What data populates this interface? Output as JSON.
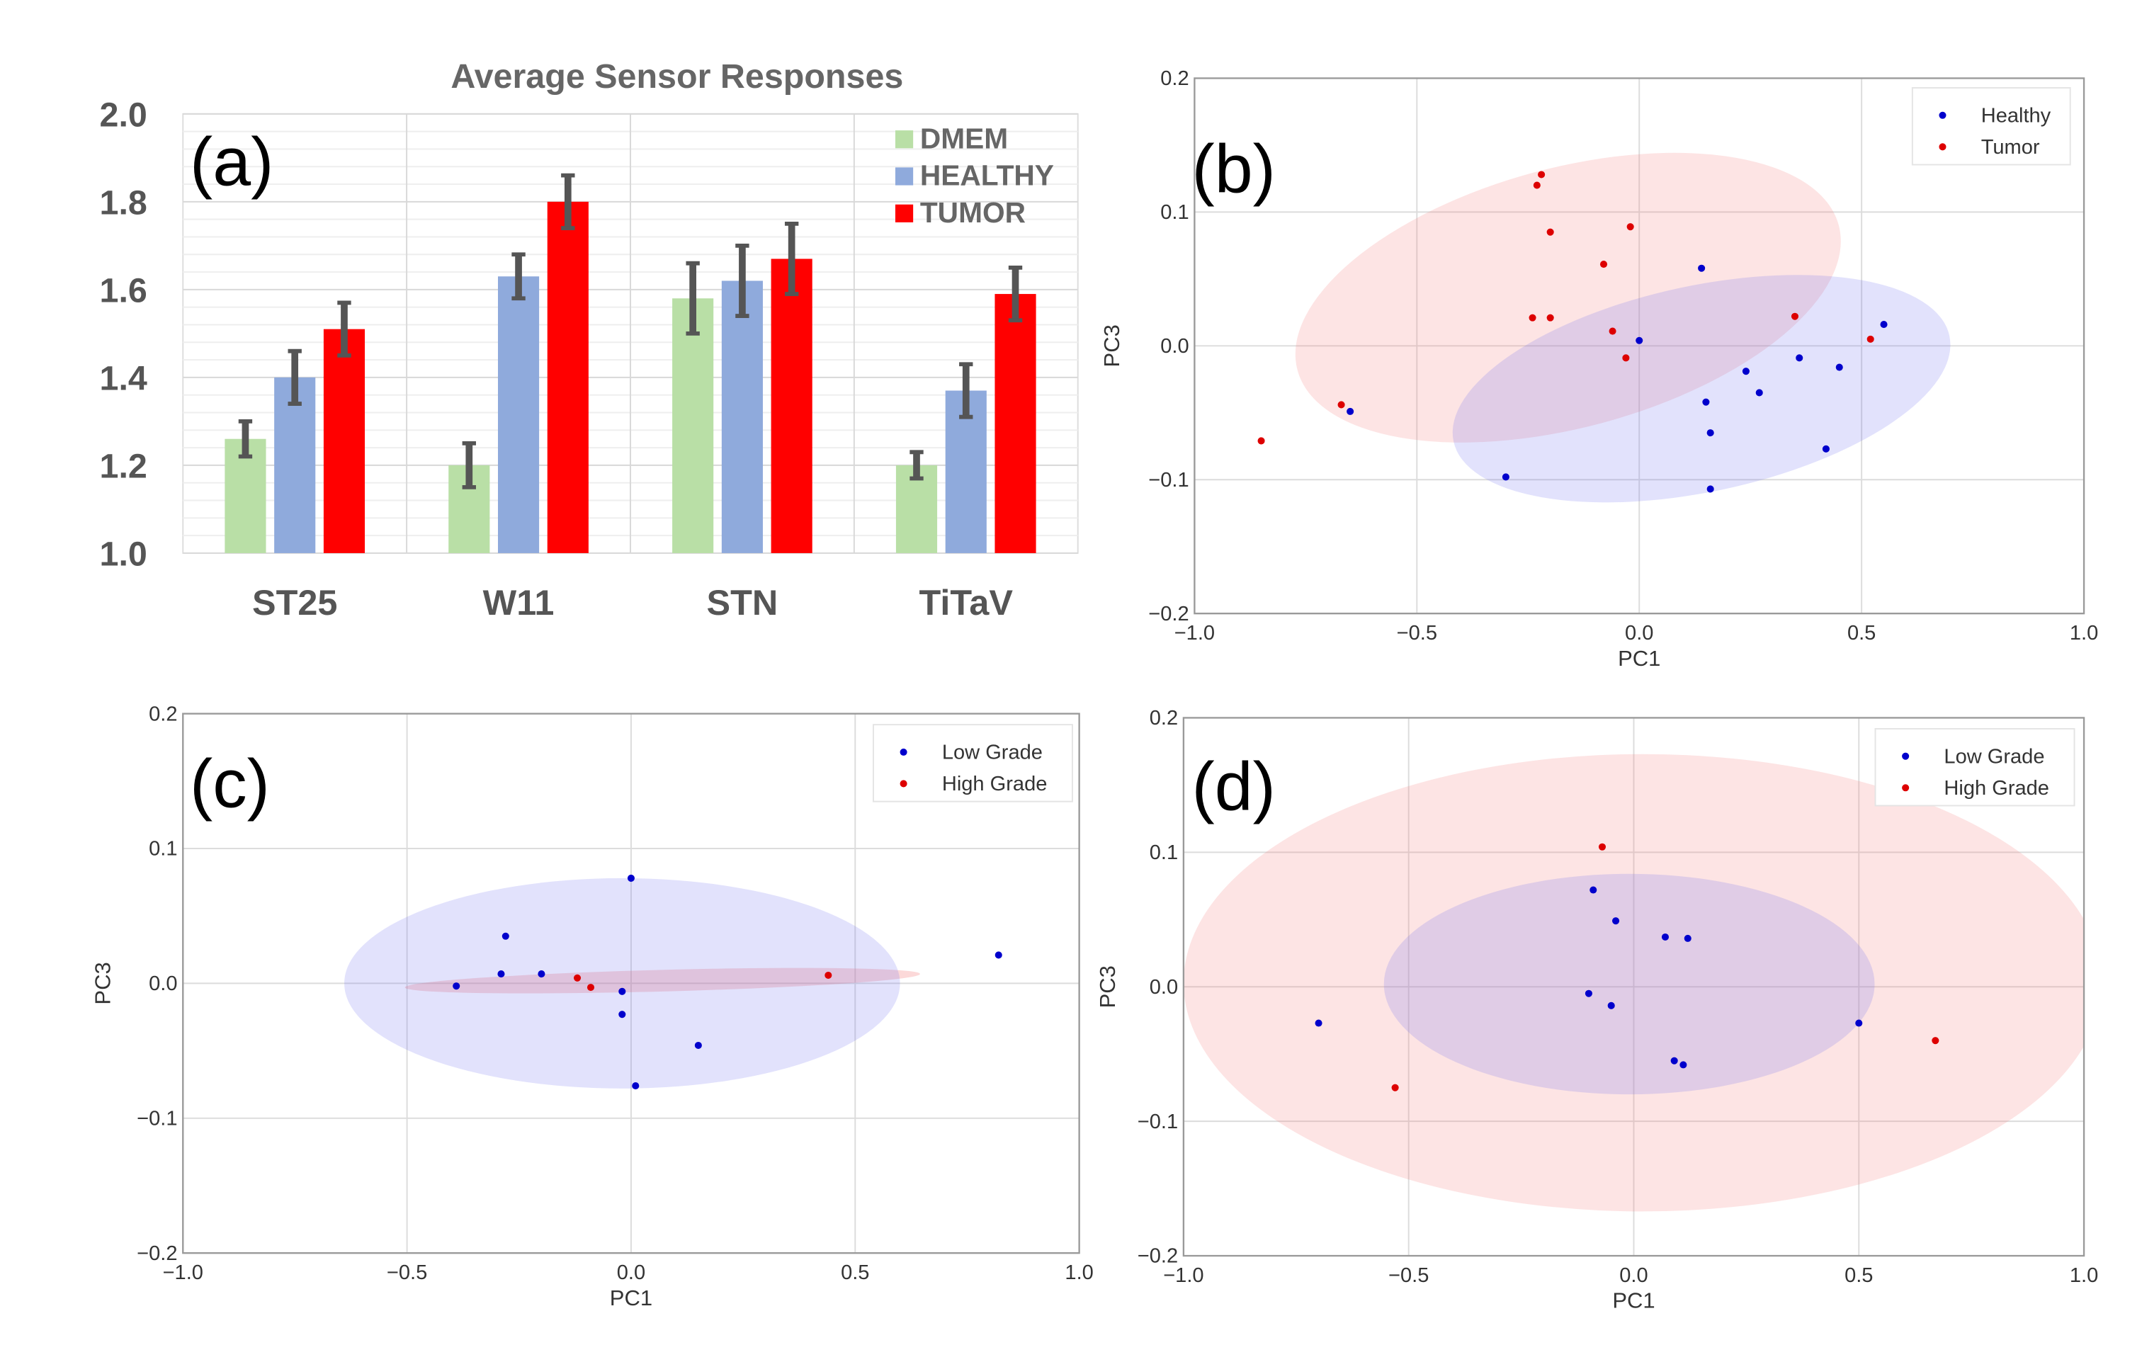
{
  "chart_data": [
    {
      "panel": "(a)",
      "type": "bar",
      "title": "Average Sensor Responses",
      "categories": [
        "ST25",
        "W11",
        "STN",
        "TiTaV"
      ],
      "series": [
        {
          "name": "DMEM",
          "color": "#b9dfa6",
          "values": [
            1.26,
            1.2,
            1.58,
            1.2
          ],
          "errors": [
            0.04,
            0.05,
            0.08,
            0.03
          ]
        },
        {
          "name": "HEALTHY",
          "color": "#8faadc",
          "values": [
            1.4,
            1.63,
            1.62,
            1.37
          ],
          "errors": [
            0.06,
            0.05,
            0.08,
            0.06
          ]
        },
        {
          "name": "TUMOR",
          "color": "#ff0000",
          "values": [
            1.51,
            1.8,
            1.67,
            1.59
          ],
          "errors": [
            0.06,
            0.06,
            0.08,
            0.06
          ]
        }
      ],
      "ylim": [
        1.0,
        2.0
      ],
      "yticks": [
        "1.0",
        "1.2",
        "1.4",
        "1.6",
        "1.8",
        "2.0"
      ],
      "legend": "top-right"
    },
    {
      "panel": "(b)",
      "type": "scatter",
      "xlabel": "PC1",
      "ylabel": "PC3",
      "xlim": [
        -1.0,
        1.0
      ],
      "ylim": [
        -0.2,
        0.2
      ],
      "xticks": [
        "−1.0",
        "−0.5",
        "0.0",
        "0.5",
        "1.0"
      ],
      "yticks": [
        "−0.2",
        "−0.1",
        "0.0",
        "0.1",
        "0.2"
      ],
      "legend": "top-right",
      "series": [
        {
          "name": "Healthy",
          "color": "#0000cc",
          "fill": "rgba(110,110,240,0.2)",
          "ellipse": {
            "cx": 0.14,
            "cy": -0.032,
            "rx": 0.57,
            "ry": 0.077,
            "angle_deg": -12
          },
          "points": [
            [
              0.14,
              0.058
            ],
            [
              0.0,
              0.004
            ],
            [
              0.36,
              -0.009
            ],
            [
              0.45,
              -0.016
            ],
            [
              0.55,
              0.016
            ],
            [
              0.24,
              -0.019
            ],
            [
              0.27,
              -0.035
            ],
            [
              0.15,
              -0.042
            ],
            [
              0.16,
              -0.065
            ],
            [
              0.42,
              -0.077
            ],
            [
              0.16,
              -0.107
            ],
            [
              -0.3,
              -0.098
            ],
            [
              -0.65,
              -0.049
            ]
          ]
        },
        {
          "name": "Tumor",
          "color": "#dd0000",
          "fill": "rgba(245,130,130,0.22)",
          "ellipse": {
            "cx": -0.16,
            "cy": 0.036,
            "rx": 0.63,
            "ry": 0.097,
            "angle_deg": -15
          },
          "points": [
            [
              -0.22,
              0.128
            ],
            [
              -0.23,
              0.12
            ],
            [
              -0.2,
              0.085
            ],
            [
              -0.02,
              0.089
            ],
            [
              -0.08,
              0.061
            ],
            [
              -0.24,
              0.021
            ],
            [
              -0.2,
              0.021
            ],
            [
              -0.06,
              0.011
            ],
            [
              -0.03,
              -0.009
            ],
            [
              0.35,
              0.022
            ],
            [
              0.52,
              0.005
            ],
            [
              -0.67,
              -0.044
            ],
            [
              -0.85,
              -0.071
            ]
          ]
        }
      ]
    },
    {
      "panel": "(c)",
      "type": "scatter",
      "xlabel": "PC1",
      "ylabel": "PC3",
      "xlim": [
        -1.0,
        1.0
      ],
      "ylim": [
        -0.2,
        0.2
      ],
      "xticks": [
        "−1.0",
        "−0.5",
        "0.0",
        "0.5",
        "1.0"
      ],
      "yticks": [
        "−0.2",
        "−0.1",
        "0.0",
        "0.1",
        "0.2"
      ],
      "legend": "top-right",
      "series": [
        {
          "name": "Low Grade",
          "color": "#0000cc",
          "fill": "rgba(110,110,240,0.2)",
          "ellipse": {
            "cx": -0.02,
            "cy": 0.0,
            "rx": 0.62,
            "ry": 0.078,
            "angle_deg": 0
          },
          "points": [
            [
              0.0,
              0.078
            ],
            [
              -0.28,
              0.035
            ],
            [
              -0.29,
              0.007
            ],
            [
              -0.2,
              0.007
            ],
            [
              -0.39,
              -0.002
            ],
            [
              -0.02,
              -0.006
            ],
            [
              -0.02,
              -0.023
            ],
            [
              0.15,
              -0.046
            ],
            [
              0.01,
              -0.076
            ],
            [
              0.82,
              0.021
            ]
          ]
        },
        {
          "name": "High Grade",
          "color": "#dd0000",
          "fill": "rgba(245,130,130,0.3)",
          "ellipse": {
            "cx": 0.07,
            "cy": 0.002,
            "rx": 0.575,
            "ry": 0.008,
            "angle_deg": -1.5
          },
          "points": [
            [
              -0.12,
              0.004
            ],
            [
              -0.09,
              -0.003
            ],
            [
              0.44,
              0.006
            ]
          ]
        }
      ]
    },
    {
      "panel": "(d)",
      "type": "scatter",
      "xlabel": "PC1",
      "ylabel": "PC3",
      "xlim": [
        -1.0,
        1.0
      ],
      "ylim": [
        -0.2,
        0.2
      ],
      "xticks": [
        "−1.0",
        "−0.5",
        "0.0",
        "0.5",
        "1.0"
      ],
      "yticks": [
        "−0.2",
        "−0.1",
        "0.0",
        "0.1",
        "0.2"
      ],
      "legend": "top-right",
      "series": [
        {
          "name": "Low Grade",
          "color": "#0000cc",
          "fill": "rgba(110,110,240,0.2)",
          "ellipse": {
            "cx": -0.01,
            "cy": 0.002,
            "rx": 0.545,
            "ry": 0.082,
            "angle_deg": 0
          },
          "points": [
            [
              -0.09,
              0.072
            ],
            [
              -0.04,
              0.049
            ],
            [
              0.07,
              0.037
            ],
            [
              0.12,
              0.036
            ],
            [
              -0.1,
              -0.005
            ],
            [
              -0.05,
              -0.014
            ],
            [
              0.09,
              -0.055
            ],
            [
              0.11,
              -0.058
            ],
            [
              0.5,
              -0.027
            ],
            [
              -0.7,
              -0.027
            ]
          ]
        },
        {
          "name": "High Grade",
          "color": "#dd0000",
          "fill": "rgba(245,130,130,0.22)",
          "ellipse": {
            "cx": 0.02,
            "cy": 0.003,
            "rx": 1.02,
            "ry": 0.17,
            "angle_deg": 0
          },
          "points": [
            [
              -0.07,
              0.104
            ],
            [
              -0.53,
              -0.075
            ],
            [
              0.67,
              -0.04
            ]
          ]
        }
      ]
    }
  ]
}
